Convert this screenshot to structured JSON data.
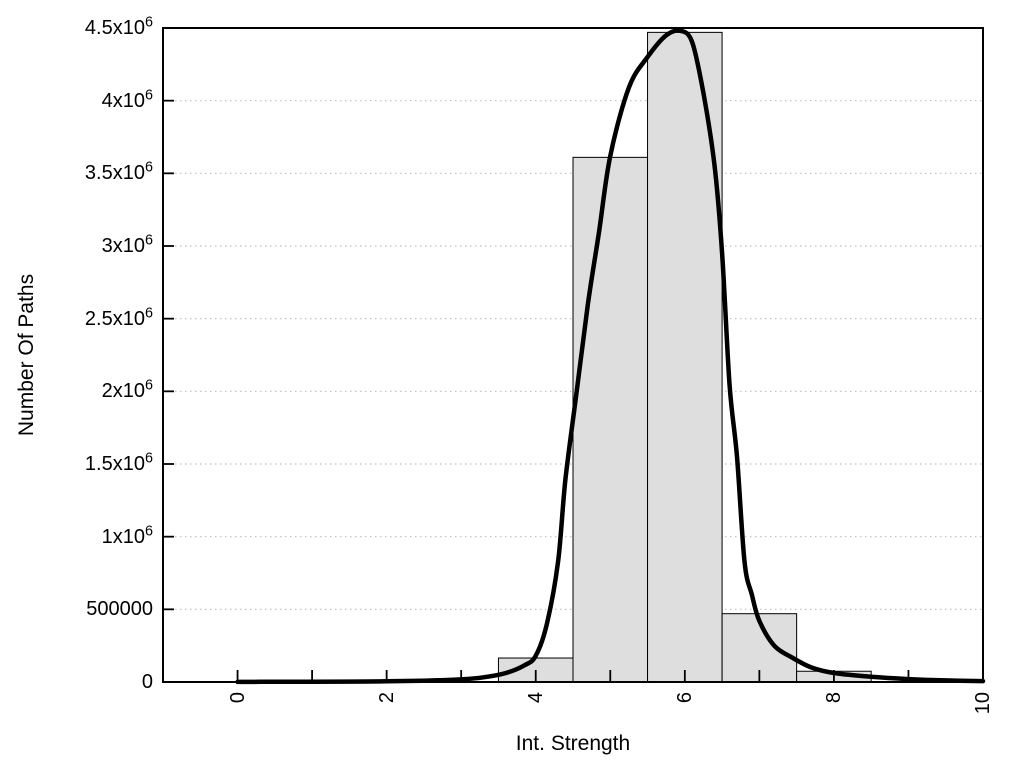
{
  "chart_data": {
    "type": "bar",
    "subtype": "histogram_with_fit_curve",
    "title": "",
    "xlabel": "Int. Strength",
    "ylabel": "Number Of Paths",
    "xlim": [
      -1,
      10
    ],
    "ylim": [
      0,
      4500000
    ],
    "grid": {
      "horizontal": true,
      "style": "dotted",
      "vertical": false
    },
    "legend": "none",
    "x_ticks": [
      {
        "v": 0,
        "label": "0"
      },
      {
        "v": 1
      },
      {
        "v": 2,
        "label": "2"
      },
      {
        "v": 3
      },
      {
        "v": 4,
        "label": "4"
      },
      {
        "v": 5
      },
      {
        "v": 6,
        "label": "6"
      },
      {
        "v": 7
      },
      {
        "v": 8,
        "label": "8"
      },
      {
        "v": 9
      },
      {
        "v": 10,
        "label": "10"
      }
    ],
    "y_ticks": [
      {
        "v": 0,
        "label": "0"
      },
      {
        "v": 500000,
        "label": "500000"
      },
      {
        "v": 1000000,
        "label": "1x10^6"
      },
      {
        "v": 1500000,
        "label": "1.5x10^6"
      },
      {
        "v": 2000000,
        "label": "2x10^6"
      },
      {
        "v": 2500000,
        "label": "2.5x10^6"
      },
      {
        "v": 3000000,
        "label": "3x10^6"
      },
      {
        "v": 3500000,
        "label": "3.5x10^6"
      },
      {
        "v": 4000000,
        "label": "4x10^6"
      },
      {
        "v": 4500000,
        "label": "4.5x10^6"
      }
    ],
    "bars": [
      {
        "x_from": 3.5,
        "x_to": 4.5,
        "center": 4,
        "value": 165000
      },
      {
        "x_from": 4.5,
        "x_to": 5.5,
        "center": 5,
        "value": 3610000
      },
      {
        "x_from": 5.5,
        "x_to": 6.5,
        "center": 6,
        "value": 4470000
      },
      {
        "x_from": 6.5,
        "x_to": 7.5,
        "center": 7,
        "value": 470000
      },
      {
        "x_from": 7.5,
        "x_to": 8.5,
        "center": 8,
        "value": 74000
      }
    ],
    "fit_curve": {
      "peak_x": 5.95,
      "peak_value": 4480000,
      "points": [
        [
          0,
          1000
        ],
        [
          0.5,
          1500
        ],
        [
          1,
          2000
        ],
        [
          1.5,
          3000
        ],
        [
          2,
          5000
        ],
        [
          2.5,
          9000
        ],
        [
          3,
          18000
        ],
        [
          3.3,
          32000
        ],
        [
          3.6,
          62000
        ],
        [
          3.85,
          115000
        ],
        [
          4.0,
          180000
        ],
        [
          4.15,
          400000
        ],
        [
          4.3,
          830000
        ],
        [
          4.4,
          1400000
        ],
        [
          4.55,
          2000000
        ],
        [
          4.7,
          2600000
        ],
        [
          4.85,
          3100000
        ],
        [
          5.0,
          3620000
        ],
        [
          5.25,
          4090000
        ],
        [
          5.5,
          4300000
        ],
        [
          5.75,
          4450000
        ],
        [
          5.95,
          4480000
        ],
        [
          6.1,
          4400000
        ],
        [
          6.25,
          4050000
        ],
        [
          6.4,
          3550000
        ],
        [
          6.5,
          2950000
        ],
        [
          6.6,
          2050000
        ],
        [
          6.7,
          1550000
        ],
        [
          6.8,
          830000
        ],
        [
          6.9,
          600000
        ],
        [
          7.0,
          420000
        ],
        [
          7.2,
          250000
        ],
        [
          7.45,
          165000
        ],
        [
          7.7,
          100000
        ],
        [
          8.0,
          62000
        ],
        [
          8.5,
          36000
        ],
        [
          9.0,
          20000
        ],
        [
          9.5,
          11000
        ],
        [
          10,
          6000
        ]
      ]
    },
    "colors": {
      "background": "#ffffff",
      "bar_fill": "#dedede",
      "bar_stroke": "#000000",
      "curve": "#000000",
      "grid": "#bfbfbf",
      "axis": "#000000",
      "text": "#000000"
    }
  }
}
